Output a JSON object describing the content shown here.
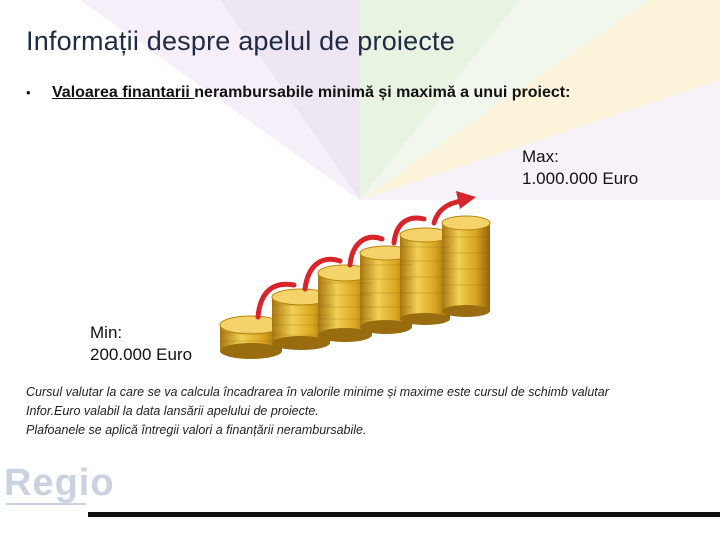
{
  "slide": {
    "title": "Informații despre apelul de proiecte",
    "bullet": {
      "marker": "•",
      "text_underlined": "Valoarea finantarii ",
      "text_rest": "nerambursabile minimă și maximă a unui proiect:"
    },
    "max_label": {
      "line1": "Max:",
      "line2": "1.000.000 Euro"
    },
    "min_label": {
      "line1": "Min:",
      "line2": "200.000 Euro"
    },
    "note_lines": [
      "Cursul valutar la care se va calcula încadrarea în valorile minime și maxime este cursul de schimb valutar",
      "Infor.Euro valabil la data lansării apelului de proiecte.",
      "Plafoanele se aplică întregii valori a finanțării nerambursabile."
    ],
    "logo_text": "Regio"
  },
  "colors": {
    "title": "#1f2a44",
    "arrow": "#d8242b",
    "coin": "#d9a520",
    "bg_purple": "#efe6f3",
    "bg_green": "#e8f3e2",
    "bg_yellow": "#fbf3da",
    "logo": "#c9d2de"
  },
  "icons": {
    "illustration": "coin-stacks-with-rising-arrow-icon",
    "logo": "regio-logo-icon"
  }
}
